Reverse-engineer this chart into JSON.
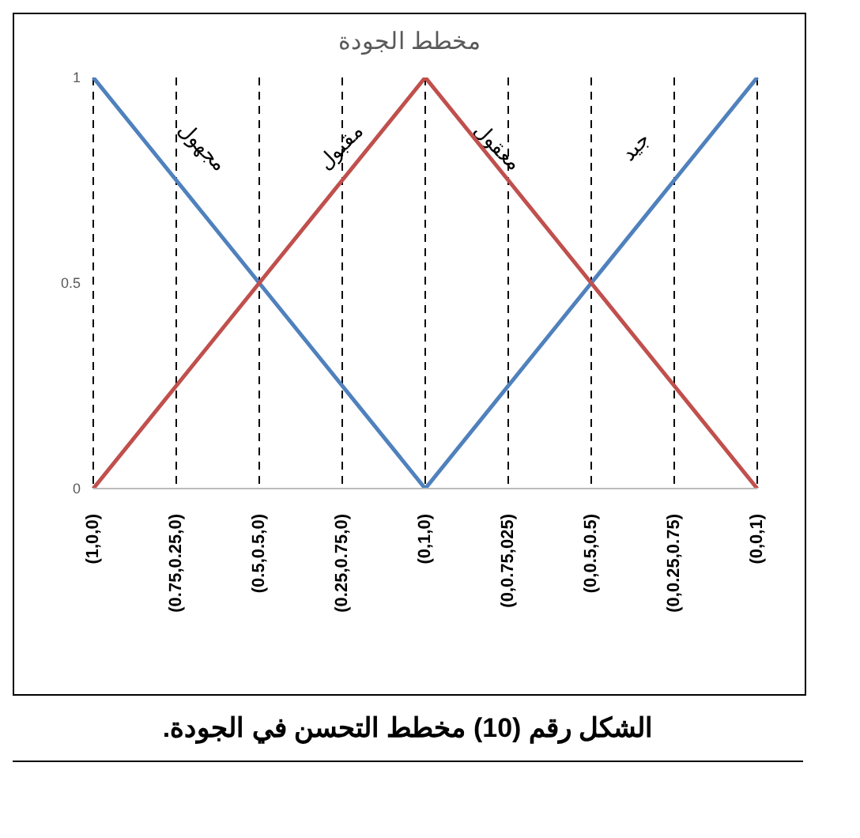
{
  "chart_data": {
    "type": "line",
    "title": "مخطط الجودة",
    "categories": [
      "(1,0,0)",
      "(0.75,0.25,0)",
      "(0.5,0.5,0)",
      "(0.25,0.75,0)",
      "(0,1,0)",
      "(0,0.75,025)",
      "(0,0.5,0.5)",
      "(0,0.25,0.75)",
      "(0,0,1)"
    ],
    "series": [
      {
        "color": "#4f81bd",
        "values": [
          1,
          0.75,
          0.5,
          0.25,
          0,
          0.25,
          0.5,
          0.75,
          1
        ]
      },
      {
        "color": "#c0504d",
        "values": [
          0,
          0.25,
          0.5,
          0.75,
          1,
          0.75,
          0.5,
          0.25,
          0
        ]
      }
    ],
    "ylim": [
      0,
      1
    ],
    "yticks": [
      0,
      0.5,
      1
    ],
    "grid": "x",
    "legend": false,
    "marker": "none",
    "line_style": "solid",
    "annotations": [
      "مجهول",
      "مقبول",
      "معقول",
      "جيد",
      "الشكل رقم (10) مخطط التحسن في الجودة."
    ]
  }
}
